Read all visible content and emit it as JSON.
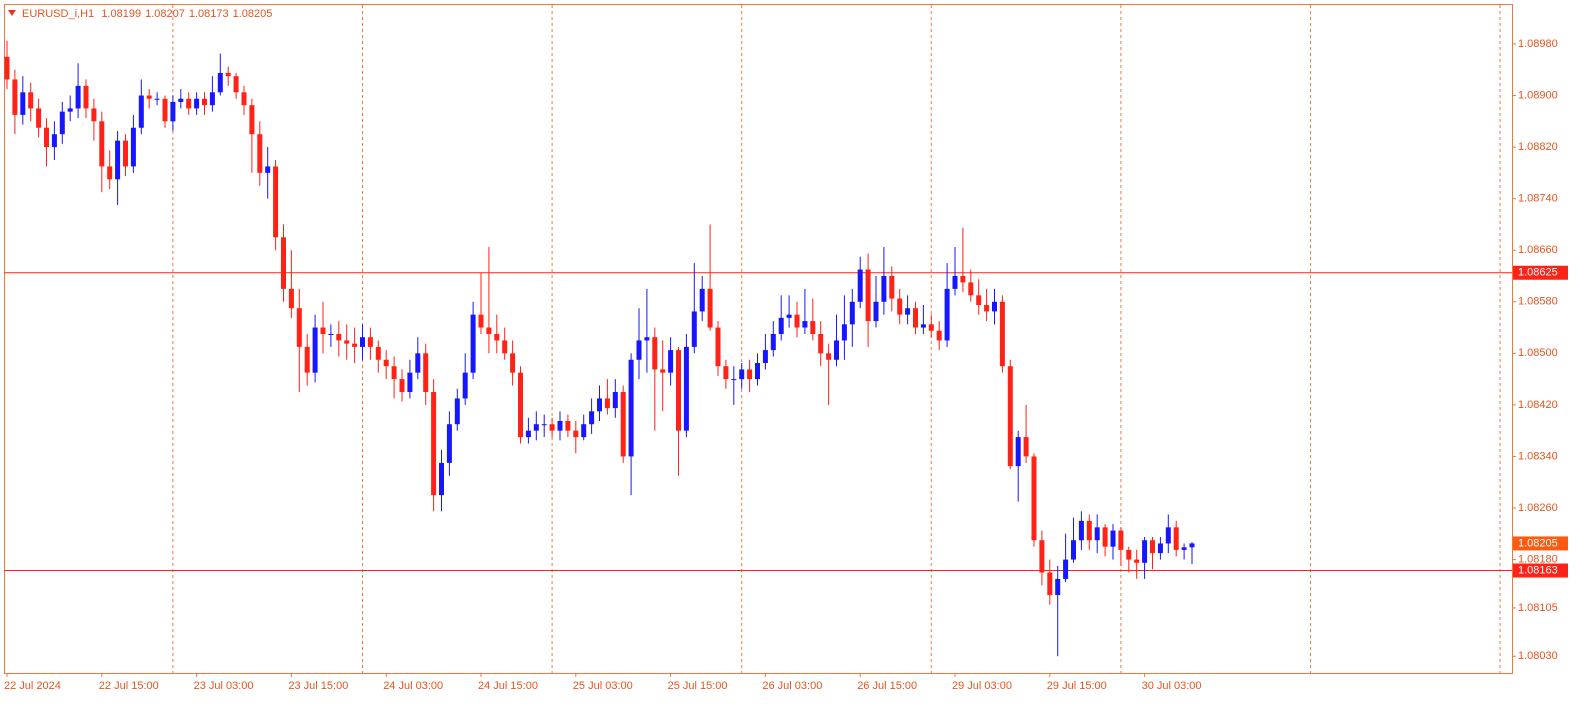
{
  "chart_data": {
    "type": "candlestick",
    "title": "EURUSD_i,H1",
    "up_color": "#1616ff",
    "down_color": "#ff2216",
    "hline_color": "#ff2216",
    "last_price_color": "#ff5a10",
    "categories": [
      "22 Jul 2024",
      null,
      null,
      null,
      null,
      null,
      null,
      null,
      null,
      null,
      null,
      null,
      "22 Jul 15:00",
      null,
      null,
      null,
      null,
      null,
      null,
      null,
      null,
      null,
      null,
      null,
      "23 Jul 03:00",
      null,
      null,
      null,
      null,
      null,
      null,
      null,
      null,
      null,
      null,
      null,
      "23 Jul 15:00",
      null,
      null,
      null,
      null,
      null,
      null,
      null,
      null,
      null,
      null,
      null,
      "24 Jul 03:00",
      null,
      null,
      null,
      null,
      null,
      null,
      null,
      null,
      null,
      null,
      null,
      "24 Jul 15:00",
      null,
      null,
      null,
      null,
      null,
      null,
      null,
      null,
      null,
      null,
      null,
      "25 Jul 03:00",
      null,
      null,
      null,
      null,
      null,
      null,
      null,
      null,
      null,
      null,
      null,
      "25 Jul 15:00",
      null,
      null,
      null,
      null,
      null,
      null,
      null,
      null,
      null,
      null,
      null,
      "26 Jul 03:00",
      null,
      null,
      null,
      null,
      null,
      null,
      null,
      null,
      null,
      null,
      null,
      "26 Jul 15:00",
      null,
      null,
      null,
      null,
      null,
      null,
      null,
      null,
      null,
      null,
      null,
      "29 Jul 03:00",
      null,
      null,
      null,
      null,
      null,
      null,
      null,
      null,
      null,
      null,
      null,
      "29 Jul 15:00",
      null,
      null,
      null,
      null,
      null,
      null,
      null,
      null,
      null,
      null,
      null,
      "30 Jul 03:00",
      null,
      null,
      null,
      null,
      null,
      null
    ],
    "open": [
      1.0896,
      1.08925,
      1.0887,
      1.08905,
      1.0888,
      1.0885,
      1.0882,
      1.0884,
      1.08875,
      1.0888,
      1.08915,
      1.0888,
      1.0886,
      1.0879,
      1.0877,
      1.0883,
      1.0879,
      1.0885,
      1.089,
      1.08895,
      1.08895,
      1.0886,
      1.0889,
      1.08895,
      1.0888,
      1.08895,
      1.08885,
      1.08905,
      1.08935,
      1.0893,
      1.08905,
      1.08885,
      1.0884,
      1.0878,
      1.0879,
      1.0868,
      1.086,
      1.0857,
      1.0851,
      1.0847,
      1.0854,
      1.0853,
      1.0853,
      1.0852,
      1.08515,
      1.0851,
      1.08525,
      1.0851,
      1.0849,
      1.0848,
      1.0846,
      1.0844,
      1.0847,
      1.085,
      1.0844,
      1.0828,
      1.0833,
      1.0839,
      1.0843,
      1.0847,
      1.0856,
      1.0854,
      1.0853,
      1.0852,
      1.085,
      1.0847,
      1.0837,
      1.0838,
      1.0839,
      1.0839,
      1.0838,
      1.08395,
      1.0838,
      1.0837,
      1.0839,
      1.0841,
      1.0843,
      1.08415,
      1.0844,
      1.0834,
      1.0849,
      1.0852,
      1.08525,
      1.08475,
      1.0847,
      1.08505,
      1.0838,
      1.0851,
      1.08565,
      1.086,
      1.0854,
      1.0848,
      1.0846,
      1.0846,
      1.08475,
      1.0846,
      1.08485,
      1.08505,
      1.0853,
      1.08555,
      1.0856,
      1.0854,
      1.0855,
      1.0853,
      1.085,
      1.0849,
      1.0852,
      1.08545,
      1.0858,
      1.0863,
      1.0855,
      1.0858,
      1.0862,
      1.08585,
      1.0856,
      1.0857,
      1.0854,
      1.08545,
      1.08535,
      1.0852,
      1.086,
      1.0862,
      1.0861,
      1.0859,
      1.08575,
      1.08565,
      1.0858,
      1.0848,
      1.08325,
      1.0837,
      1.0834,
      1.0821,
      1.0816,
      1.08125,
      1.0815,
      1.0818,
      1.0821,
      1.0824,
      1.0821,
      1.0823,
      1.082,
      1.08225,
      1.08195,
      1.0818,
      1.08175,
      1.0821,
      1.0819,
      1.08205,
      1.0823,
      1.08195,
      1.08199
    ],
    "high": [
      1.08985,
      1.0894,
      1.0893,
      1.0892,
      1.08895,
      1.08865,
      1.0886,
      1.0889,
      1.089,
      1.0895,
      1.08925,
      1.08895,
      1.08875,
      1.08815,
      1.08845,
      1.0884,
      1.0887,
      1.08925,
      1.0891,
      1.08905,
      1.089,
      1.089,
      1.0891,
      1.08905,
      1.08905,
      1.08905,
      1.0893,
      1.08965,
      1.08945,
      1.08935,
      1.08915,
      1.08895,
      1.0886,
      1.0882,
      1.088,
      1.087,
      1.0866,
      1.086,
      1.0853,
      1.0856,
      1.0858,
      1.08545,
      1.0855,
      1.08545,
      1.0854,
      1.08545,
      1.0854,
      1.0852,
      1.08505,
      1.08495,
      1.08475,
      1.0849,
      1.08525,
      1.08515,
      1.0846,
      1.0835,
      1.0841,
      1.08445,
      1.085,
      1.0858,
      1.08625,
      1.08665,
      1.0856,
      1.0854,
      1.0852,
      1.0848,
      1.084,
      1.0841,
      1.08405,
      1.084,
      1.0841,
      1.08405,
      1.08395,
      1.08405,
      1.0843,
      1.0845,
      1.0846,
      1.0846,
      1.0845,
      1.085,
      1.0857,
      1.086,
      1.0854,
      1.0852,
      1.08525,
      1.0851,
      1.0853,
      1.0864,
      1.0862,
      1.087,
      1.0855,
      1.0849,
      1.0848,
      1.08485,
      1.0849,
      1.085,
      1.0853,
      1.0855,
      1.0859,
      1.0859,
      1.0858,
      1.086,
      1.08585,
      1.0855,
      1.08515,
      1.0856,
      1.0859,
      1.086,
      1.0865,
      1.08655,
      1.0862,
      1.08665,
      1.08635,
      1.086,
      1.0859,
      1.0858,
      1.08575,
      1.0856,
      1.0855,
      1.0864,
      1.08665,
      1.08695,
      1.0863,
      1.08615,
      1.086,
      1.086,
      1.0859,
      1.0849,
      1.0838,
      1.0842,
      1.08345,
      1.08225,
      1.0818,
      1.0817,
      1.0822,
      1.08245,
      1.08255,
      1.0825,
      1.0825,
      1.08235,
      1.08235,
      1.0823,
      1.082,
      1.08195,
      1.08215,
      1.08215,
      1.08215,
      1.0825,
      1.0824,
      1.08205,
      1.08207
    ],
    "low": [
      1.0891,
      1.0884,
      1.08855,
      1.0886,
      1.08835,
      1.0879,
      1.088,
      1.08825,
      1.0886,
      1.08865,
      1.08865,
      1.0883,
      1.0875,
      1.08755,
      1.0873,
      1.08775,
      1.0878,
      1.0884,
      1.0888,
      1.08885,
      1.0885,
      1.08845,
      1.0888,
      1.0887,
      1.0887,
      1.0887,
      1.08875,
      1.089,
      1.08915,
      1.08895,
      1.0887,
      1.0878,
      1.0876,
      1.0874,
      1.0866,
      1.0858,
      1.08555,
      1.0844,
      1.0845,
      1.08455,
      1.085,
      1.0851,
      1.08495,
      1.0849,
      1.08485,
      1.0849,
      1.0849,
      1.0847,
      1.0846,
      1.0843,
      1.08425,
      1.0843,
      1.0846,
      1.0842,
      1.08255,
      1.08255,
      1.0831,
      1.0838,
      1.0842,
      1.0846,
      1.0853,
      1.085,
      1.085,
      1.0849,
      1.0845,
      1.0836,
      1.0836,
      1.08365,
      1.0837,
      1.0837,
      1.08365,
      1.0837,
      1.08345,
      1.08365,
      1.08375,
      1.08395,
      1.08405,
      1.084,
      1.0833,
      1.0828,
      1.0846,
      1.0847,
      1.0838,
      1.0841,
      1.0845,
      1.0831,
      1.0837,
      1.085,
      1.0855,
      1.08535,
      1.08465,
      1.08445,
      1.0842,
      1.08445,
      1.0844,
      1.0845,
      1.08475,
      1.08495,
      1.0852,
      1.0854,
      1.08525,
      1.0853,
      1.0852,
      1.0848,
      1.0842,
      1.0848,
      1.0849,
      1.0851,
      1.0857,
      1.0851,
      1.0854,
      1.0856,
      1.08565,
      1.08545,
      1.08545,
      1.0853,
      1.0853,
      1.08525,
      1.08505,
      1.0851,
      1.0859,
      1.08595,
      1.0858,
      1.0856,
      1.0855,
      1.08545,
      1.0847,
      1.0832,
      1.0827,
      1.0833,
      1.082,
      1.0814,
      1.0811,
      1.0803,
      1.08145,
      1.08175,
      1.08195,
      1.08195,
      1.0819,
      1.08185,
      1.0818,
      1.0817,
      1.0816,
      1.0815,
      1.0815,
      1.08165,
      1.0818,
      1.0819,
      1.08185,
      1.0818,
      1.08173
    ],
    "close": [
      1.08925,
      1.0887,
      1.08905,
      1.0888,
      1.0885,
      1.0882,
      1.0884,
      1.08875,
      1.0888,
      1.08915,
      1.0888,
      1.0886,
      1.0879,
      1.0877,
      1.0883,
      1.0879,
      1.0885,
      1.089,
      1.08895,
      1.08895,
      1.0886,
      1.0889,
      1.08895,
      1.0888,
      1.08895,
      1.08885,
      1.08905,
      1.08935,
      1.0893,
      1.08905,
      1.08885,
      1.0884,
      1.0878,
      1.0879,
      1.0868,
      1.086,
      1.0857,
      1.0851,
      1.0847,
      1.0854,
      1.0853,
      1.0853,
      1.0852,
      1.08515,
      1.0851,
      1.08525,
      1.0851,
      1.0849,
      1.0848,
      1.0846,
      1.0844,
      1.0847,
      1.085,
      1.0844,
      1.0828,
      1.0833,
      1.0839,
      1.0843,
      1.0847,
      1.0856,
      1.0854,
      1.0853,
      1.0852,
      1.085,
      1.0847,
      1.0837,
      1.0838,
      1.0839,
      1.0839,
      1.0838,
      1.08395,
      1.0838,
      1.0837,
      1.0839,
      1.0841,
      1.0843,
      1.08415,
      1.0844,
      1.0834,
      1.0849,
      1.0852,
      1.08525,
      1.08475,
      1.0847,
      1.08505,
      1.0838,
      1.0851,
      1.08565,
      1.086,
      1.0854,
      1.0848,
      1.0846,
      1.0846,
      1.08475,
      1.0846,
      1.08485,
      1.08505,
      1.0853,
      1.08555,
      1.0856,
      1.0854,
      1.0855,
      1.0853,
      1.085,
      1.0849,
      1.0852,
      1.08545,
      1.0858,
      1.0863,
      1.0855,
      1.0858,
      1.0862,
      1.08585,
      1.0856,
      1.0857,
      1.0854,
      1.08545,
      1.08535,
      1.0852,
      1.086,
      1.0862,
      1.0861,
      1.0859,
      1.08575,
      1.08565,
      1.0858,
      1.0848,
      1.08325,
      1.0837,
      1.0834,
      1.0821,
      1.0816,
      1.08125,
      1.0815,
      1.0818,
      1.0821,
      1.0824,
      1.0821,
      1.0823,
      1.082,
      1.08225,
      1.08195,
      1.0818,
      1.08175,
      1.0821,
      1.0819,
      1.08205,
      1.0823,
      1.08195,
      1.08199,
      1.08205
    ],
    "hlines": [
      1.08625,
      1.08163
    ],
    "ylim": [
      1.08004,
      1.09042
    ],
    "yticks": [
      {
        "value": 1.0898,
        "label": "1.08980"
      },
      {
        "value": 1.089,
        "label": "1.08900"
      },
      {
        "value": 1.0882,
        "label": "1.08820"
      },
      {
        "value": 1.0874,
        "label": "1.08740"
      },
      {
        "value": 1.0866,
        "label": "1.08660"
      },
      {
        "value": 1.0858,
        "label": "1.08580"
      },
      {
        "value": 1.085,
        "label": "1.08500"
      },
      {
        "value": 1.0842,
        "label": "1.08420"
      },
      {
        "value": 1.0834,
        "label": "1.08340"
      },
      {
        "value": 1.0826,
        "label": "1.08260"
      },
      {
        "value": 1.0818,
        "label": "1.08180"
      },
      1.08105,
      {
        "value": 1.0803,
        "label": "1.08030"
      }
    ]
  }
}
